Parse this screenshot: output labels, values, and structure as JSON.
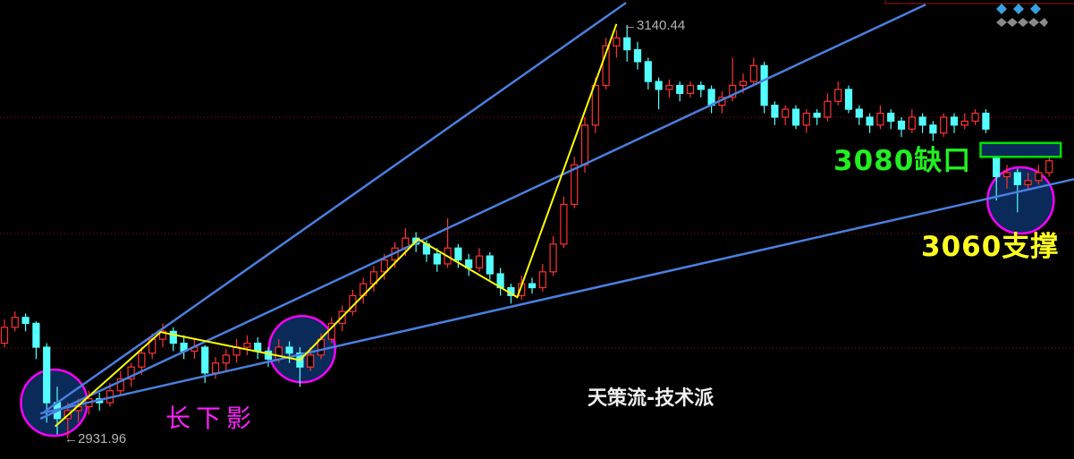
{
  "chart_data": {
    "type": "candlestick",
    "ylim": [
      2921.6,
      3153.1
    ],
    "grid": true,
    "gridline_prices": [
      3093.9,
      3035.3,
      2977.5
    ],
    "colors": {
      "up": "#ff3232",
      "down": "#54ffff",
      "grid": "#a01010",
      "trend": "#4a7fe0",
      "wave": "#ffff00",
      "circle": "#ff00ff",
      "circle_fill": "#0a2a5a",
      "gap_box": "#00e000"
    },
    "candles_ohlc": [
      [
        2980,
        2992,
        2978,
        2988
      ],
      [
        2988,
        2996,
        2986,
        2993
      ],
      [
        2993,
        2995,
        2986,
        2990
      ],
      [
        2990,
        2991,
        2972,
        2978
      ],
      [
        2978,
        2980,
        2940,
        2950
      ],
      [
        2950,
        2958,
        2934,
        2942
      ],
      [
        2942,
        2950,
        2931.96,
        2946
      ],
      [
        2946,
        2952,
        2940,
        2948
      ],
      [
        2948,
        2956,
        2944,
        2952
      ],
      [
        2952,
        2955,
        2946,
        2950
      ],
      [
        2950,
        2960,
        2948,
        2956
      ],
      [
        2956,
        2966,
        2954,
        2962
      ],
      [
        2962,
        2970,
        2958,
        2968
      ],
      [
        2968,
        2978,
        2964,
        2975
      ],
      [
        2975,
        2985,
        2972,
        2982
      ],
      [
        2982,
        2990,
        2978,
        2986
      ],
      [
        2986,
        2988,
        2976,
        2980
      ],
      [
        2980,
        2984,
        2972,
        2976
      ],
      [
        2976,
        2982,
        2972,
        2978
      ],
      [
        2978,
        2979,
        2960,
        2965
      ],
      [
        2965,
        2973,
        2962,
        2970
      ],
      [
        2970,
        2977,
        2966,
        2974
      ],
      [
        2974,
        2982,
        2970,
        2978
      ],
      [
        2978,
        2984,
        2974,
        2980
      ],
      [
        2980,
        2983,
        2972,
        2976
      ],
      [
        2976,
        2978,
        2968,
        2972
      ],
      [
        2972,
        2982,
        2970,
        2978
      ],
      [
        2978,
        2981,
        2970,
        2975
      ],
      [
        2975,
        2978,
        2958,
        2968
      ],
      [
        2968,
        2978,
        2966,
        2974
      ],
      [
        2974,
        2985,
        2972,
        2982
      ],
      [
        2982,
        2993,
        2980,
        2990
      ],
      [
        2990,
        2999,
        2986,
        2996
      ],
      [
        2996,
        3007,
        2994,
        3004
      ],
      [
        3004,
        3013,
        3000,
        3010
      ],
      [
        3010,
        3019,
        3006,
        3016
      ],
      [
        3016,
        3025,
        3012,
        3022
      ],
      [
        3022,
        3031,
        3018,
        3028
      ],
      [
        3028,
        3038,
        3024,
        3033
      ],
      [
        3033,
        3036,
        3026,
        3030
      ],
      [
        3030,
        3032,
        3021,
        3025
      ],
      [
        3025,
        3028,
        3016,
        3020
      ],
      [
        3020,
        3043,
        3018,
        3028
      ],
      [
        3028,
        3030,
        3018,
        3022
      ],
      [
        3022,
        3025,
        3014,
        3018
      ],
      [
        3018,
        3028,
        3016,
        3024
      ],
      [
        3024,
        3026,
        3012,
        3015
      ],
      [
        3015,
        3018,
        3004,
        3008
      ],
      [
        3008,
        3010,
        3000,
        3004
      ],
      [
        3004,
        3014,
        3002,
        3010
      ],
      [
        3010,
        3013,
        3005,
        3008
      ],
      [
        3008,
        3020,
        3006,
        3016
      ],
      [
        3016,
        3034,
        3014,
        3030
      ],
      [
        3030,
        3054,
        3028,
        3050
      ],
      [
        3050,
        3074,
        3048,
        3070
      ],
      [
        3070,
        3094,
        3066,
        3090
      ],
      [
        3090,
        3114,
        3086,
        3110
      ],
      [
        3110,
        3134,
        3108,
        3130
      ],
      [
        3130,
        3138,
        3124,
        3134
      ],
      [
        3134,
        3140.44,
        3122,
        3128
      ],
      [
        3128,
        3132,
        3118,
        3122
      ],
      [
        3122,
        3124,
        3108,
        3112
      ],
      [
        3112,
        3114,
        3098,
        3108
      ],
      [
        3108,
        3113,
        3104,
        3110
      ],
      [
        3110,
        3112,
        3102,
        3106
      ],
      [
        3106,
        3112,
        3104,
        3110
      ],
      [
        3110,
        3112,
        3104,
        3108
      ],
      [
        3108,
        3110,
        3096,
        3100
      ],
      [
        3100,
        3107,
        3096,
        3104
      ],
      [
        3104,
        3124,
        3102,
        3110
      ],
      [
        3110,
        3116,
        3106,
        3112
      ],
      [
        3112,
        3124,
        3110,
        3120
      ],
      [
        3120,
        3122,
        3096,
        3100
      ],
      [
        3100,
        3102,
        3090,
        3094
      ],
      [
        3094,
        3100,
        3090,
        3098
      ],
      [
        3098,
        3100,
        3088,
        3090
      ],
      [
        3090,
        3098,
        3086,
        3096
      ],
      [
        3096,
        3098,
        3090,
        3094
      ],
      [
        3094,
        3106,
        3092,
        3102
      ],
      [
        3102,
        3112,
        3100,
        3108
      ],
      [
        3108,
        3110,
        3096,
        3098
      ],
      [
        3098,
        3100,
        3090,
        3094
      ],
      [
        3094,
        3096,
        3086,
        3090
      ],
      [
        3090,
        3100,
        3088,
        3096
      ],
      [
        3096,
        3098,
        3088,
        3092
      ],
      [
        3092,
        3094,
        3084,
        3088
      ],
      [
        3088,
        3098,
        3086,
        3094
      ],
      [
        3094,
        3096,
        3086,
        3090
      ],
      [
        3090,
        3092,
        3082,
        3086
      ],
      [
        3086,
        3096,
        3084,
        3094
      ],
      [
        3094,
        3096,
        3086,
        3090
      ],
      [
        3090,
        3096,
        3088,
        3092
      ],
      [
        3092,
        3098,
        3090,
        3096
      ],
      [
        3096,
        3098,
        3086,
        3088
      ],
      [
        3080,
        3080,
        3052,
        3064
      ],
      [
        3064,
        3070,
        3058,
        3066
      ],
      [
        3066,
        3068,
        3046,
        3060
      ],
      [
        3060,
        3066,
        3058,
        3062
      ],
      [
        3062,
        3070,
        3060,
        3066
      ],
      [
        3066,
        3080,
        3064,
        3072
      ]
    ],
    "trend_lines": [
      [
        [
          3.8,
          2945.5
        ],
        [
          58.9,
          3151.7
        ]
      ],
      [
        [
          3.4,
          2941.9
        ],
        [
          87.3,
          3150.8
        ]
      ],
      [
        [
          3.4,
          2944.6
        ],
        [
          101.4,
          3062.8
        ]
      ]
    ],
    "wave_path": [
      [
        4.8,
        2938
      ],
      [
        14.8,
        2985.6
      ],
      [
        28,
        2971.5
      ],
      [
        39.2,
        3032.5
      ],
      [
        48.6,
        3003.2
      ],
      [
        58,
        3141
      ]
    ],
    "highlight_circles": [
      [
        4.7,
        2950
      ],
      [
        28.2,
        2977
      ],
      [
        96.3,
        3052
      ]
    ],
    "gap_zone": {
      "from_index": 92.5,
      "to_index": 100.1,
      "top": 3081,
      "bottom": 3074
    },
    "high_label": "3140.44",
    "low_label": "2931.96",
    "annotations": {
      "gap": "3080缺口",
      "support": "3060支撑",
      "long_shadow": "长下影",
      "watermark": "天策流-技术派"
    }
  }
}
